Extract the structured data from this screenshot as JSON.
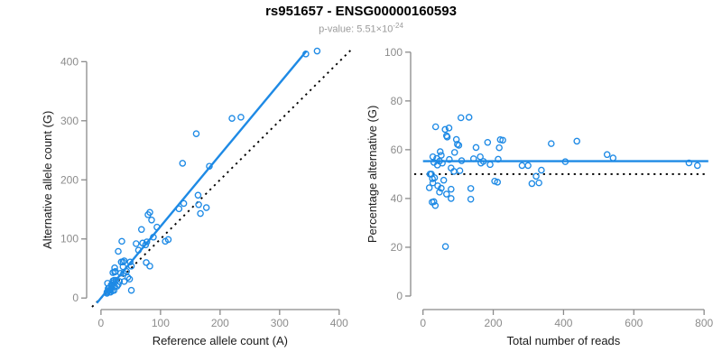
{
  "header": {
    "title": "rs951657 - ENSG00000160593",
    "pvalue_prefix": "p-value: 5.51×10",
    "pvalue_exponent": "-24"
  },
  "colors": {
    "accent_blue": "#1E8AE5",
    "axis_gray": "#8A8A8A",
    "tick_label_gray": "#8C8C8C",
    "subtitle_gray": "#9B9B9B",
    "label_black": "#1A1A1A",
    "dotted_black": "#000000"
  },
  "chart_data": [
    {
      "id": "allele-scatter",
      "type": "scatter",
      "xlabel": "Reference allele count (A)",
      "ylabel": "Alternative allele count (G)",
      "xticks": [
        0,
        100,
        200,
        300,
        400
      ],
      "yticks": [
        0,
        100,
        200,
        300,
        400
      ],
      "xlim": [
        -15,
        420
      ],
      "ylim": [
        -18,
        428
      ],
      "grid": false,
      "points": [
        [
          11,
          25
        ],
        [
          29,
          79
        ],
        [
          35,
          96
        ],
        [
          20,
          43
        ],
        [
          23,
          44
        ],
        [
          24,
          45
        ],
        [
          23,
          51
        ],
        [
          34,
          61
        ],
        [
          37,
          61
        ],
        [
          39,
          63
        ],
        [
          68,
          116
        ],
        [
          79,
          141
        ],
        [
          82,
          145
        ],
        [
          85,
          132
        ],
        [
          137,
          228
        ],
        [
          160,
          278
        ],
        [
          59,
          92
        ],
        [
          20,
          29
        ],
        [
          22,
          30
        ],
        [
          37,
          53
        ],
        [
          12,
          16
        ],
        [
          220,
          304
        ],
        [
          235,
          306
        ],
        [
          344,
          413
        ],
        [
          363,
          418
        ],
        [
          182,
          223
        ],
        [
          163,
          174
        ],
        [
          164,
          158
        ],
        [
          167,
          143
        ],
        [
          177,
          153
        ],
        [
          38,
          42
        ],
        [
          43,
          45
        ],
        [
          51,
          54
        ],
        [
          19,
          22
        ],
        [
          10,
          10
        ],
        [
          12,
          12
        ],
        [
          15,
          13
        ],
        [
          17,
          16
        ],
        [
          14,
          13
        ],
        [
          29,
          23
        ],
        [
          45,
          35
        ],
        [
          27,
          20
        ],
        [
          10,
          8
        ],
        [
          23,
          19
        ],
        [
          31,
          28
        ],
        [
          108,
          96
        ],
        [
          113,
          99
        ],
        [
          82,
          54
        ],
        [
          39,
          28
        ],
        [
          48,
          32
        ],
        [
          16,
          10
        ],
        [
          19,
          12
        ],
        [
          22,
          13
        ],
        [
          51,
          13
        ],
        [
          63,
          81
        ],
        [
          70,
          93
        ],
        [
          77,
          95
        ],
        [
          88,
          103
        ],
        [
          131,
          151
        ],
        [
          139,
          160
        ],
        [
          14,
          17
        ],
        [
          17,
          22
        ],
        [
          21,
          26
        ],
        [
          25,
          30
        ],
        [
          33,
          42
        ],
        [
          49,
          61
        ],
        [
          94,
          120
        ],
        [
          75,
          90
        ],
        [
          76,
          60
        ]
      ],
      "lines": [
        {
          "name": "identity-line",
          "style": "dotted",
          "color": "black",
          "x1": -15,
          "y1": -15,
          "x2": 421,
          "y2": 421
        },
        {
          "name": "regression-line",
          "style": "solid",
          "color": "blue",
          "x1": -7,
          "y1": -8.5,
          "x2": 345,
          "y2": 418
        }
      ]
    },
    {
      "id": "coverage-scatter",
      "type": "scatter",
      "xlabel": "Total number of reads",
      "ylabel": "Percentage alternative (G)",
      "xticks": [
        0,
        200,
        400,
        600,
        800
      ],
      "yticks": [
        0,
        20,
        40,
        60,
        80,
        100
      ],
      "xlim": [
        -30,
        815
      ],
      "ylim": [
        -5,
        104
      ],
      "grid": false,
      "points": [
        [
          36,
          69.4
        ],
        [
          108,
          73.1
        ],
        [
          131,
          73.3
        ],
        [
          63,
          68.3
        ],
        [
          67,
          65.7
        ],
        [
          69,
          65.2
        ],
        [
          74,
          68.9
        ],
        [
          95,
          64.2
        ],
        [
          98,
          62.2
        ],
        [
          102,
          61.8
        ],
        [
          184,
          63.0
        ],
        [
          220,
          64.1
        ],
        [
          227,
          63.9
        ],
        [
          217,
          60.8
        ],
        [
          365,
          62.5
        ],
        [
          438,
          63.5
        ],
        [
          151,
          60.9
        ],
        [
          49,
          59.2
        ],
        [
          52,
          57.7
        ],
        [
          90,
          58.9
        ],
        [
          28,
          57.1
        ],
        [
          524,
          58.0
        ],
        [
          541,
          56.6
        ],
        [
          757,
          54.6
        ],
        [
          781,
          53.5
        ],
        [
          405,
          55.1
        ],
        [
          337,
          51.6
        ],
        [
          322,
          49.1
        ],
        [
          310,
          46.1
        ],
        [
          330,
          46.4
        ],
        [
          80,
          52.5
        ],
        [
          88,
          51.1
        ],
        [
          105,
          51.4
        ],
        [
          41,
          53.7
        ],
        [
          20,
          50.0
        ],
        [
          24,
          50.0
        ],
        [
          28,
          46.4
        ],
        [
          33,
          48.5
        ],
        [
          27,
          48.1
        ],
        [
          52,
          44.2
        ],
        [
          80,
          43.8
        ],
        [
          47,
          42.6
        ],
        [
          18,
          44.4
        ],
        [
          42,
          45.2
        ],
        [
          59,
          47.5
        ],
        [
          204,
          47.1
        ],
        [
          212,
          46.7
        ],
        [
          136,
          39.7
        ],
        [
          67,
          41.8
        ],
        [
          80,
          40.0
        ],
        [
          26,
          38.5
        ],
        [
          31,
          38.7
        ],
        [
          35,
          37.1
        ],
        [
          64,
          20.3
        ],
        [
          144,
          56.3
        ],
        [
          163,
          57.1
        ],
        [
          172,
          55.2
        ],
        [
          191,
          53.9
        ],
        [
          282,
          53.5
        ],
        [
          299,
          53.5
        ],
        [
          31,
          54.8
        ],
        [
          39,
          56.4
        ],
        [
          47,
          55.3
        ],
        [
          55,
          54.5
        ],
        [
          75,
          56.0
        ],
        [
          110,
          55.5
        ],
        [
          214,
          56.1
        ],
        [
          165,
          54.5
        ],
        [
          136,
          44.1
        ]
      ],
      "lines": [
        {
          "name": "null-line",
          "style": "dotted",
          "color": "black",
          "x1": -25,
          "y1": 50,
          "x2": 812,
          "y2": 50
        },
        {
          "name": "mean-line",
          "style": "solid",
          "color": "blue",
          "x1": 0,
          "y1": 55.3,
          "x2": 812,
          "y2": 55.3
        }
      ]
    }
  ]
}
